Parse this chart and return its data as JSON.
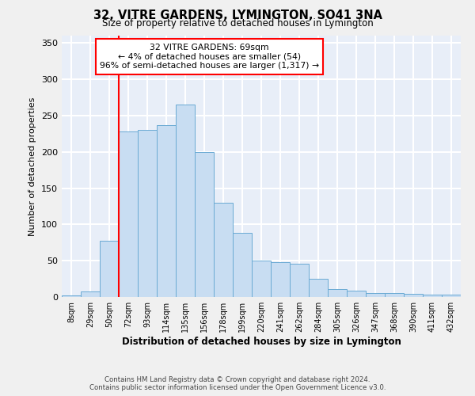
{
  "title": "32, VITRE GARDENS, LYMINGTON, SO41 3NA",
  "subtitle": "Size of property relative to detached houses in Lymington",
  "xlabel": "Distribution of detached houses by size in Lymington",
  "ylabel": "Number of detached properties",
  "bar_color": "#c8ddf2",
  "bar_edge_color": "#6aaad4",
  "bg_color": "#e8eef8",
  "grid_color": "#ffffff",
  "fig_bg_color": "#f0f0f0",
  "categories": [
    "8sqm",
    "29sqm",
    "50sqm",
    "72sqm",
    "93sqm",
    "114sqm",
    "135sqm",
    "156sqm",
    "178sqm",
    "199sqm",
    "220sqm",
    "241sqm",
    "262sqm",
    "284sqm",
    "305sqm",
    "326sqm",
    "347sqm",
    "368sqm",
    "390sqm",
    "411sqm",
    "432sqm"
  ],
  "values": [
    2,
    8,
    77,
    228,
    230,
    237,
    265,
    200,
    130,
    88,
    50,
    48,
    46,
    25,
    11,
    9,
    6,
    5,
    4,
    3,
    3
  ],
  "red_line_index": 2.5,
  "annotation_line1": "32 VITRE GARDENS: 69sqm",
  "annotation_line2": "← 4% of detached houses are smaller (54)",
  "annotation_line3": "96% of semi-detached houses are larger (1,317) →",
  "ylim_max": 360,
  "yticks": [
    0,
    50,
    100,
    150,
    200,
    250,
    300,
    350
  ],
  "footer1": "Contains HM Land Registry data © Crown copyright and database right 2024.",
  "footer2": "Contains public sector information licensed under the Open Government Licence v3.0."
}
